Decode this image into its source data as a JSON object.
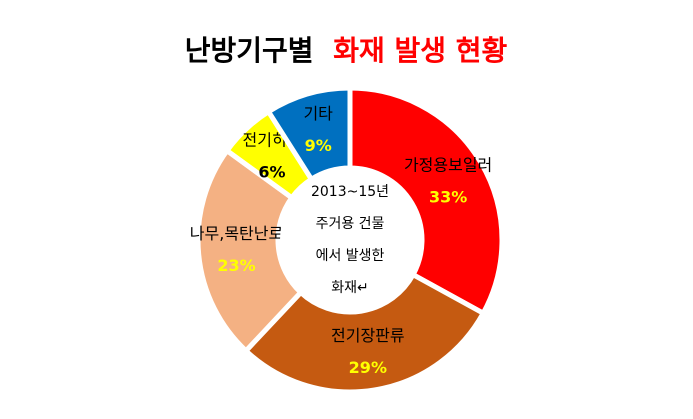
{
  "chart_data": {
    "type": "donut",
    "title_parts": [
      "난방기구별",
      "화재 발생 현황"
    ],
    "title_colors": [
      "#000000",
      "#ff0000"
    ],
    "center_text": [
      "2013~15년",
      "주거용 건물",
      "에서 발생한",
      "화재↵"
    ],
    "categories": [
      "가정용보일러",
      "전기장판류",
      "나무,목탄난로",
      "전기히터",
      "기타"
    ],
    "values": [
      33,
      29,
      23,
      6,
      9
    ],
    "value_labels": [
      "33%",
      "29%",
      "23%",
      "6%",
      "9%"
    ],
    "colors": [
      "#ff0000",
      "#c55a11",
      "#f4b183",
      "#ffff00",
      "#0070c0"
    ],
    "value_label_colors": [
      "#ffff00",
      "#ffff00",
      "#ffff00",
      "#000000",
      "#ffff00"
    ]
  }
}
